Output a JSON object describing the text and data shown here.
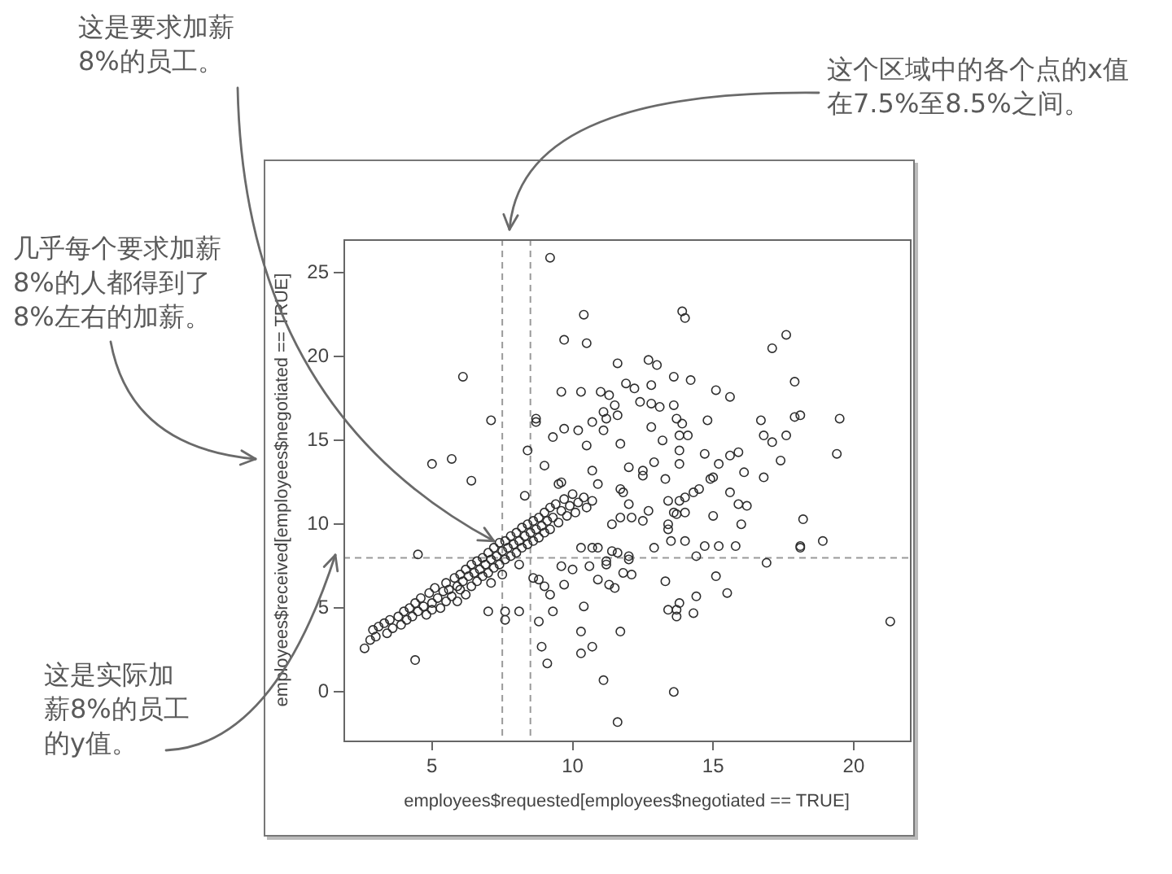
{
  "chart_data": {
    "type": "scatter",
    "xlabel": "employees$requested[employees$negotiated == TRUE]",
    "ylabel": "employees$received[employees$negotiated == TRUE]",
    "color": "#2e2e2e",
    "marker": "circle",
    "xlim": [
      1.85,
      22.0
    ],
    "ylim": [
      -2.9,
      27.0
    ],
    "xticks": [
      5,
      10,
      15,
      20
    ],
    "yticks": [
      0,
      5,
      10,
      15,
      20,
      25
    ],
    "ref_lines": [
      {
        "axis": "x",
        "value": 7.5,
        "color": "#9a9a9a",
        "line_style": "dashed"
      },
      {
        "axis": "x",
        "value": 8.5,
        "color": "#9a9a9a",
        "line_style": "dashed"
      },
      {
        "axis": "y",
        "value": 8,
        "color": "#9a9a9a",
        "line_style": "dashed"
      }
    ],
    "annotations": [
      {
        "text": "这是要求加薪8%的员工。",
        "x": 7.2,
        "y": 9.0
      },
      "这个区域中的各个点的x值在7.5%至8.5%之间。",
      "几乎每个要求加薪8%的人都得到了8%左右的加薪。",
      "这是实际加薪8%的员工的y值。"
    ],
    "x": [
      9.2,
      10.4,
      13.9,
      14.0,
      17.6,
      17.1,
      9.7,
      10.5,
      11.6,
      12.7,
      13.0,
      13.6,
      14.2,
      17.9,
      11.9,
      12.2,
      12.8,
      9.6,
      10.3,
      11.0,
      11.3,
      15.1,
      15.6,
      12.4,
      12.8,
      13.1,
      13.6,
      11.5,
      11.1,
      11.6,
      11.2,
      10.7,
      13.7,
      13.9,
      14.8,
      16.7,
      17.9,
      18.1,
      19.5,
      12.8,
      9.7,
      10.2,
      11.1,
      9.3,
      10.5,
      11.7,
      13.2,
      13.8,
      14.1,
      13.8,
      13.8,
      14.7,
      15.6,
      15.9,
      16.8,
      17.1,
      17.6,
      19.4,
      17.4,
      12.9,
      15.2,
      16.1,
      16.8,
      10.7,
      12.0,
      12.5,
      12.5,
      13.3,
      14.9,
      15.0,
      9.0,
      9.5,
      9.6,
      10.9,
      11.7,
      11.8,
      14.5,
      14.3,
      14.0,
      13.8,
      15.6,
      13.4,
      13.6,
      13.7,
      14.0,
      12.7,
      12.0,
      15.9,
      16.2,
      15.0,
      18.2,
      16.0,
      13.4,
      13.4,
      11.4,
      11.7,
      12.1,
      12.5,
      13.5,
      14.0,
      14.7,
      15.2,
      15.8,
      12.9,
      14.4,
      18.1,
      18.1,
      18.9,
      16.9,
      12.0,
      12.0,
      11.2,
      11.2,
      11.8,
      12.1,
      13.3,
      15.1,
      15.5,
      14.4,
      13.4,
      13.7,
      13.8,
      13.7,
      14.3,
      10.4,
      9.3,
      10.3,
      11.7,
      10.7,
      10.3,
      11.1,
      13.6,
      11.6,
      21.3,
      8.9,
      9.1,
      9.6,
      10.0,
      9.7,
      10.6,
      10.9,
      11.3,
      11.5,
      9.2,
      10.3,
      10.7,
      10.9,
      11.4,
      11.6,
      6.1,
      7.1,
      5.0,
      5.7,
      6.4,
      8.7,
      8.7,
      8.4,
      8.3,
      4.5,
      7.0,
      7.6,
      8.1,
      7.6,
      4.4,
      8.8,
      9.0,
      8.8,
      8.6,
      2.6,
      2.8,
      2.9,
      3.0,
      3.1,
      3.3,
      3.4,
      3.5,
      3.6,
      3.8,
      3.9,
      4.0,
      4.1,
      4.2,
      4.3,
      4.4,
      4.5,
      4.6,
      4.7,
      4.8,
      4.9,
      5.0,
      5.0,
      5.1,
      5.2,
      5.3,
      5.4,
      5.5,
      5.5,
      5.6,
      5.7,
      5.8,
      5.9,
      5.9,
      6.0,
      6.0,
      6.1,
      6.2,
      6.2,
      6.3,
      6.4,
      6.4,
      6.5,
      6.6,
      6.6,
      6.7,
      6.8,
      6.8,
      6.9,
      7.0,
      7.0,
      7.1,
      7.1,
      7.2,
      7.2,
      7.3,
      7.4,
      7.4,
      7.5,
      7.5,
      7.6,
      7.6,
      7.7,
      7.8,
      7.8,
      7.9,
      8.0,
      8.0,
      8.1,
      8.1,
      8.2,
      8.2,
      8.3,
      8.4,
      8.4,
      8.5,
      8.6,
      8.6,
      8.7,
      8.8,
      8.8,
      8.9,
      9.0,
      9.0,
      9.1,
      9.2,
      9.2,
      9.3,
      9.4,
      9.5,
      9.6,
      9.7,
      9.8,
      9.9,
      10.0,
      10.1,
      10.2,
      10.4,
      10.5,
      10.7
    ],
    "values": [
      25.9,
      22.5,
      22.7,
      22.3,
      21.3,
      20.5,
      21.0,
      20.8,
      19.6,
      19.8,
      19.5,
      18.8,
      18.6,
      18.5,
      18.4,
      18.1,
      18.3,
      17.9,
      17.9,
      17.9,
      17.7,
      18.0,
      17.6,
      17.3,
      17.2,
      17.0,
      17.1,
      17.1,
      16.7,
      16.5,
      16.3,
      16.1,
      16.3,
      16.0,
      16.2,
      16.2,
      16.4,
      16.5,
      16.3,
      15.8,
      15.7,
      15.6,
      15.6,
      15.2,
      14.7,
      14.8,
      15.0,
      15.3,
      15.3,
      14.4,
      13.6,
      14.2,
      14.1,
      14.3,
      15.3,
      14.9,
      15.3,
      14.2,
      13.8,
      13.7,
      13.6,
      13.1,
      12.8,
      13.2,
      13.4,
      13.2,
      12.9,
      12.7,
      12.7,
      12.8,
      13.5,
      12.4,
      12.5,
      12.4,
      12.1,
      11.9,
      12.1,
      11.9,
      11.6,
      11.4,
      11.9,
      11.4,
      10.7,
      10.6,
      10.7,
      10.8,
      11.2,
      11.2,
      11.1,
      10.5,
      10.3,
      10.0,
      10.0,
      9.7,
      10.0,
      10.4,
      10.4,
      10.2,
      9.0,
      9.0,
      8.7,
      8.7,
      8.7,
      8.6,
      8.1,
      8.7,
      8.6,
      9.0,
      7.7,
      8.1,
      7.9,
      7.8,
      7.6,
      7.1,
      7.0,
      6.6,
      6.9,
      5.9,
      5.7,
      4.9,
      4.9,
      5.3,
      4.5,
      4.7,
      5.1,
      4.8,
      3.6,
      3.6,
      2.7,
      2.3,
      0.7,
      0.0,
      -1.8,
      4.2,
      2.7,
      1.7,
      7.5,
      7.3,
      6.4,
      7.5,
      6.7,
      6.4,
      6.2,
      5.8,
      8.6,
      8.6,
      8.6,
      8.4,
      8.3,
      18.8,
      16.2,
      13.6,
      13.9,
      12.6,
      16.3,
      16.1,
      14.4,
      11.7,
      8.2,
      4.8,
      4.8,
      4.8,
      4.3,
      1.9,
      6.7,
      6.3,
      4.2,
      6.8,
      2.6,
      3.1,
      3.7,
      3.3,
      3.9,
      4.1,
      3.5,
      4.3,
      3.8,
      4.5,
      4.0,
      4.8,
      4.3,
      5.0,
      4.5,
      5.3,
      4.8,
      5.6,
      5.1,
      4.6,
      5.9,
      5.3,
      4.9,
      6.2,
      5.6,
      5.0,
      6.0,
      6.5,
      5.4,
      6.1,
      5.7,
      6.8,
      6.3,
      5.4,
      7.0,
      6.1,
      6.6,
      7.3,
      5.8,
      6.9,
      7.6,
      6.3,
      7.1,
      7.8,
      6.6,
      7.3,
      8.0,
      6.9,
      7.6,
      8.3,
      7.1,
      6.5,
      7.9,
      8.6,
      7.4,
      8.1,
      8.9,
      7.6,
      8.4,
      7.0,
      9.0,
      7.9,
      8.6,
      9.3,
      8.1,
      8.8,
      9.5,
      8.3,
      7.6,
      9.0,
      9.8,
      8.6,
      9.3,
      10.0,
      8.8,
      9.5,
      10.2,
      9.0,
      9.7,
      10.4,
      9.2,
      9.9,
      10.7,
      9.5,
      10.2,
      11.0,
      9.7,
      10.4,
      11.2,
      10.1,
      10.8,
      11.5,
      10.5,
      11.1,
      11.8,
      10.7,
      11.3,
      11.6,
      11.0,
      11.4
    ]
  }
}
